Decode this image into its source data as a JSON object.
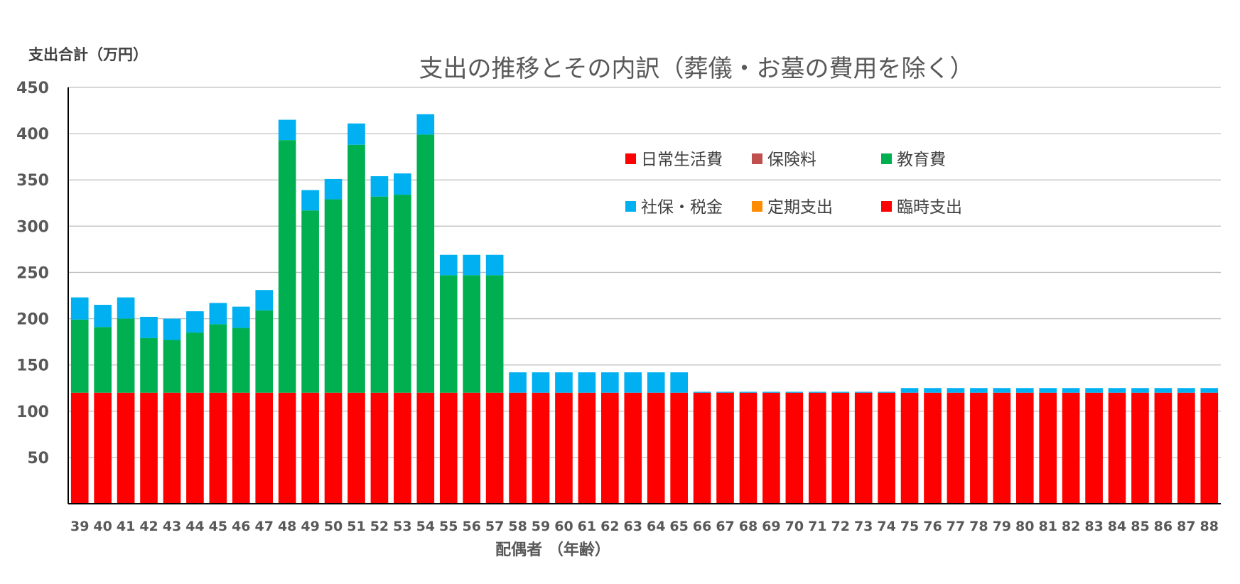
{
  "chart_data": {
    "type": "bar",
    "stacked": true,
    "title": "支出の推移とその内訳（葬儀・お墓の費用を除く）",
    "ylabel": "支出合計（万円）",
    "xlabel": "配偶者 （年齢）",
    "ylim": [
      0,
      450
    ],
    "yticks": [
      50,
      100,
      150,
      200,
      250,
      300,
      350,
      400,
      450
    ],
    "grid": true,
    "legend_position": "top-center",
    "categories": [
      "39",
      "40",
      "41",
      "42",
      "43",
      "44",
      "45",
      "46",
      "47",
      "48",
      "49",
      "50",
      "51",
      "52",
      "53",
      "54",
      "55",
      "56",
      "57",
      "58",
      "59",
      "60",
      "61",
      "62",
      "63",
      "64",
      "65",
      "66",
      "67",
      "68",
      "69",
      "70",
      "71",
      "72",
      "73",
      "74",
      "75",
      "76",
      "77",
      "78",
      "79",
      "80",
      "81",
      "82",
      "83",
      "84",
      "85",
      "86",
      "87",
      "88"
    ],
    "series": [
      {
        "name": "日常生活費",
        "color": "#ff0000",
        "values": [
          120,
          120,
          120,
          120,
          120,
          120,
          120,
          120,
          120,
          120,
          120,
          120,
          120,
          120,
          120,
          120,
          120,
          120,
          120,
          120,
          120,
          120,
          120,
          120,
          120,
          120,
          120,
          120,
          120,
          120,
          120,
          120,
          120,
          120,
          120,
          120,
          120,
          120,
          120,
          120,
          120,
          120,
          120,
          120,
          120,
          120,
          120,
          120,
          120,
          120
        ]
      },
      {
        "name": "保険料",
        "color": "#c0504d",
        "values": [
          0,
          0,
          0,
          0,
          0,
          0,
          0,
          0,
          0,
          0,
          0,
          0,
          0,
          0,
          0,
          0,
          0,
          0,
          0,
          0,
          0,
          0,
          0,
          0,
          0,
          0,
          0,
          0,
          0,
          0,
          0,
          0,
          0,
          0,
          0,
          0,
          0,
          0,
          0,
          0,
          0,
          0,
          0,
          0,
          0,
          0,
          0,
          0,
          0,
          0
        ]
      },
      {
        "name": "教育費",
        "color": "#00b050",
        "values": [
          79,
          71,
          80,
          59,
          57,
          65,
          74,
          70,
          89,
          273,
          197,
          209,
          268,
          212,
          214,
          279,
          127,
          127,
          127,
          0,
          0,
          0,
          0,
          0,
          0,
          0,
          0,
          0,
          0,
          0,
          0,
          0,
          0,
          0,
          0,
          0,
          0,
          0,
          0,
          0,
          0,
          0,
          0,
          0,
          0,
          0,
          0,
          0,
          0,
          0
        ]
      },
      {
        "name": "社保・税金",
        "color": "#00b0f0",
        "values": [
          24,
          24,
          23,
          23,
          23,
          23,
          23,
          23,
          22,
          22,
          22,
          22,
          23,
          22,
          23,
          22,
          22,
          22,
          22,
          22,
          22,
          22,
          22,
          22,
          22,
          22,
          22,
          1,
          1,
          1,
          1,
          1,
          1,
          1,
          1,
          1,
          5,
          5,
          5,
          5,
          5,
          5,
          5,
          5,
          5,
          5,
          5,
          5,
          5,
          5
        ]
      },
      {
        "name": "定期支出",
        "color": "#ff8c00",
        "values": [
          0,
          0,
          0,
          0,
          0,
          0,
          0,
          0,
          0,
          0,
          0,
          0,
          0,
          0,
          0,
          0,
          0,
          0,
          0,
          0,
          0,
          0,
          0,
          0,
          0,
          0,
          0,
          0,
          0,
          0,
          0,
          0,
          0,
          0,
          0,
          0,
          0,
          0,
          0,
          0,
          0,
          0,
          0,
          0,
          0,
          0,
          0,
          0,
          0,
          0
        ]
      },
      {
        "name": "臨時支出",
        "color": "#ff0000",
        "values": [
          0,
          0,
          0,
          0,
          0,
          0,
          0,
          0,
          0,
          0,
          0,
          0,
          0,
          0,
          0,
          0,
          0,
          0,
          0,
          0,
          0,
          0,
          0,
          0,
          0,
          0,
          0,
          0,
          0,
          0,
          0,
          0,
          0,
          0,
          0,
          0,
          0,
          0,
          0,
          0,
          0,
          0,
          0,
          0,
          0,
          0,
          0,
          0,
          0,
          0
        ]
      }
    ]
  }
}
